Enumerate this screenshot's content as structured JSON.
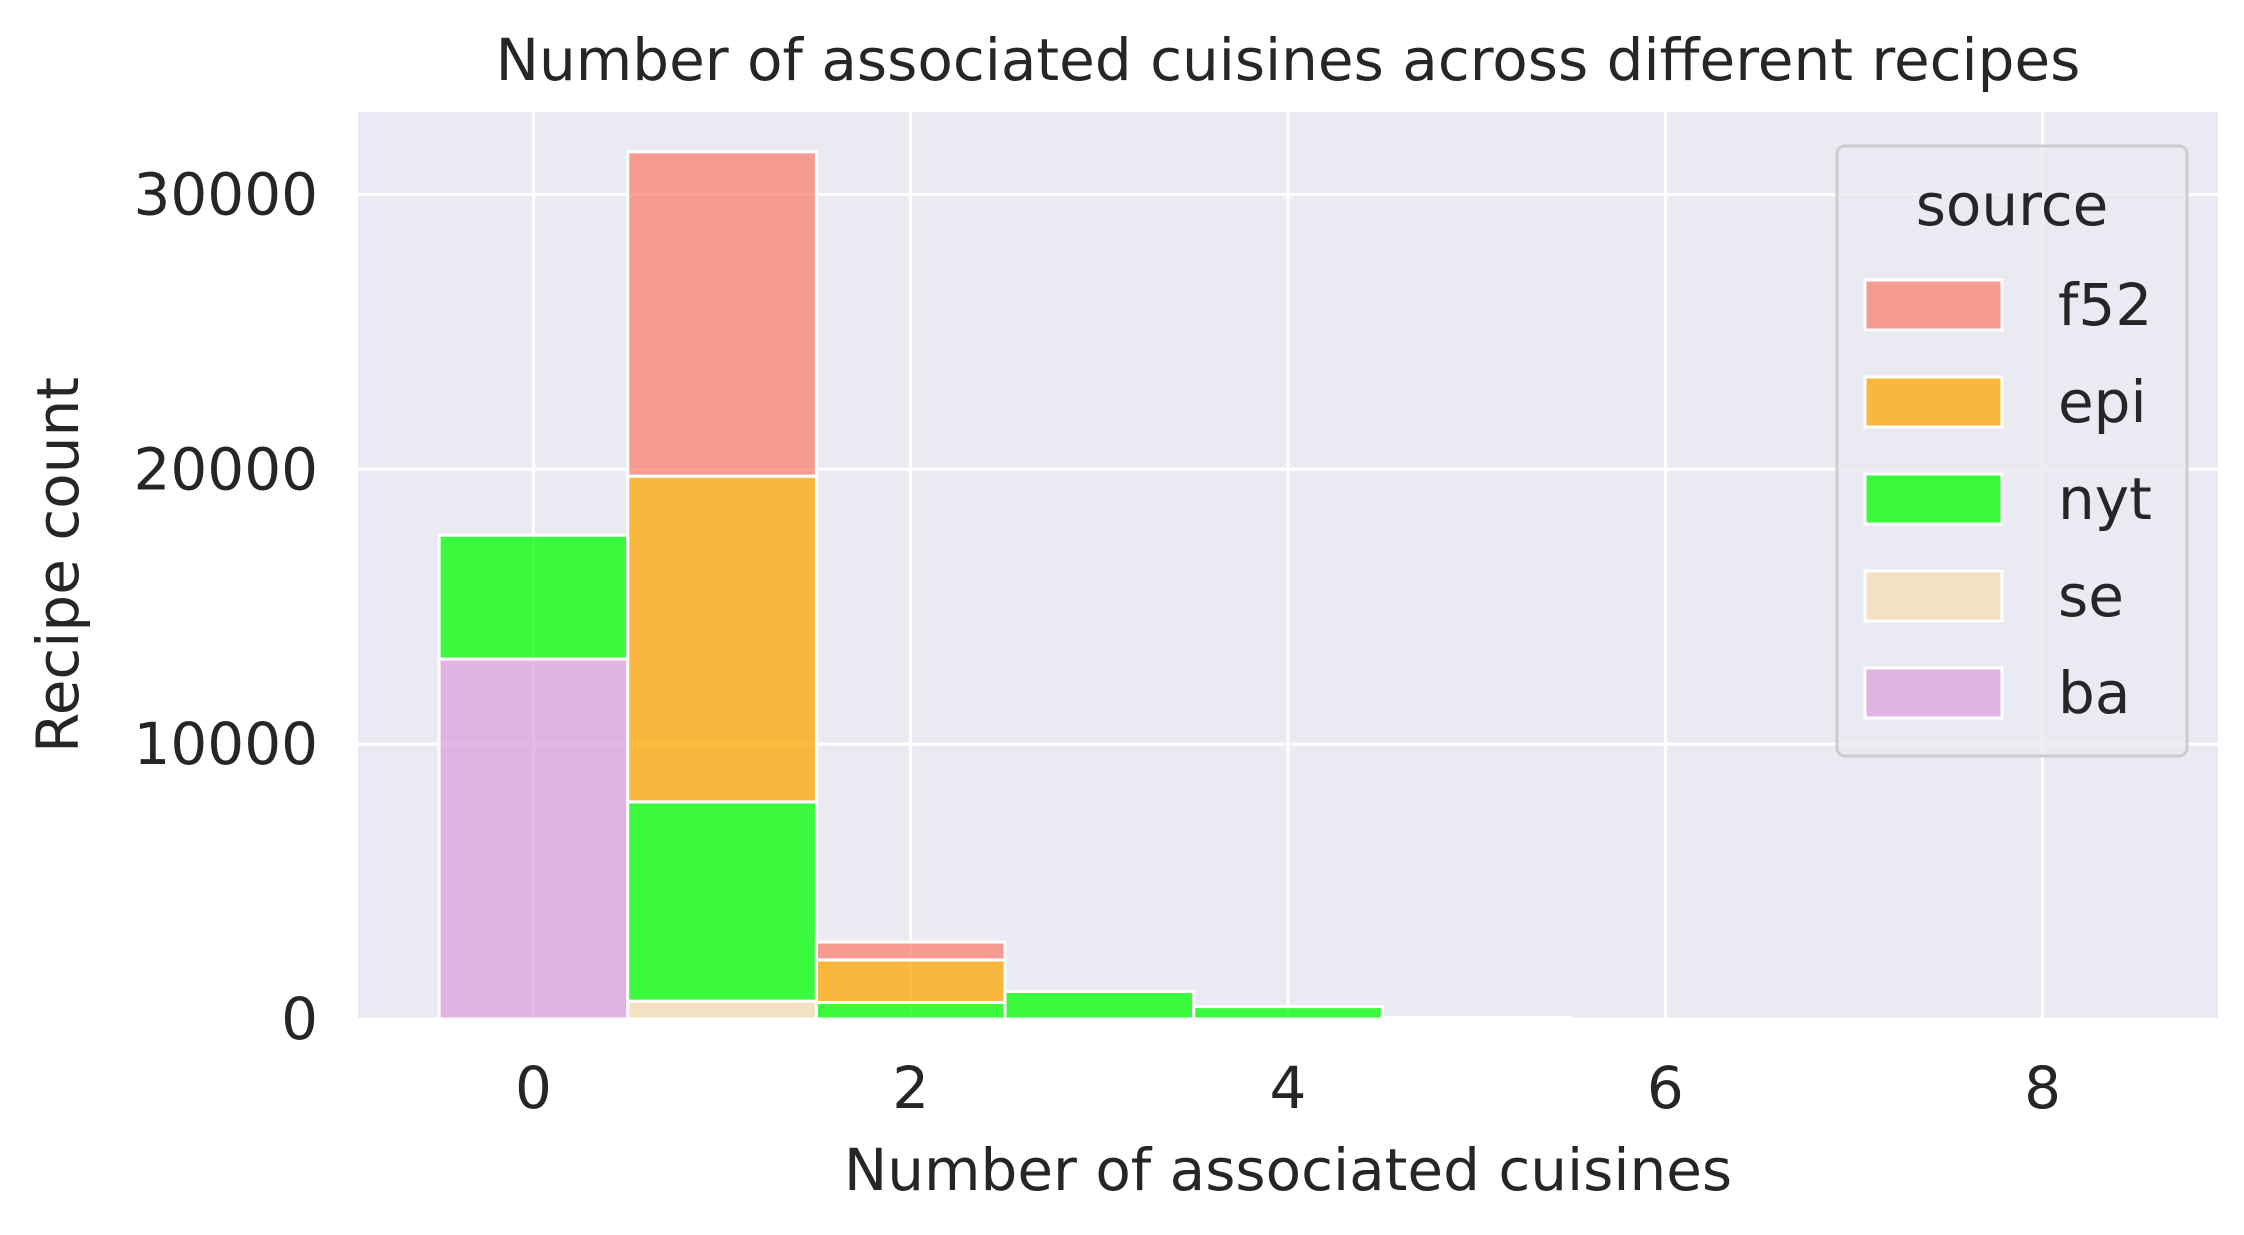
{
  "chart_data": {
    "type": "bar",
    "stacked": true,
    "title": "Number of associated cuisines across different recipes",
    "xlabel": "Number of associated cuisines",
    "ylabel": "Recipe count",
    "x_ticks": [
      "0",
      "2",
      "4",
      "6",
      "8"
    ],
    "y_ticks": [
      "0",
      "10000",
      "20000",
      "30000"
    ],
    "xlim": [
      -0.93,
      8.93
    ],
    "ylim": [
      0,
      33000
    ],
    "grid": true,
    "legend": {
      "title": "source",
      "placement": "top-right"
    },
    "categories": [
      0,
      1,
      2,
      3,
      4,
      5,
      6,
      7,
      8
    ],
    "series": [
      {
        "name": "ba",
        "color": "#dda0dd",
        "values": [
          13100,
          0,
          0,
          0,
          0,
          0,
          0,
          0,
          0
        ]
      },
      {
        "name": "se",
        "color": "#f5deb3",
        "values": [
          0,
          650,
          0,
          0,
          0,
          0,
          0,
          0,
          0
        ]
      },
      {
        "name": "nyt",
        "color": "#00ff00",
        "values": [
          4500,
          7250,
          600,
          1000,
          450,
          50,
          0,
          0,
          0
        ]
      },
      {
        "name": "epi",
        "color": "#ffa500",
        "values": [
          0,
          11850,
          1550,
          0,
          0,
          0,
          0,
          0,
          0
        ]
      },
      {
        "name": "f52",
        "color": "#fa8072",
        "values": [
          0,
          11800,
          650,
          0,
          0,
          0,
          0,
          0,
          0
        ]
      }
    ],
    "legend_order": [
      "f52",
      "epi",
      "nyt",
      "se",
      "ba"
    ]
  }
}
